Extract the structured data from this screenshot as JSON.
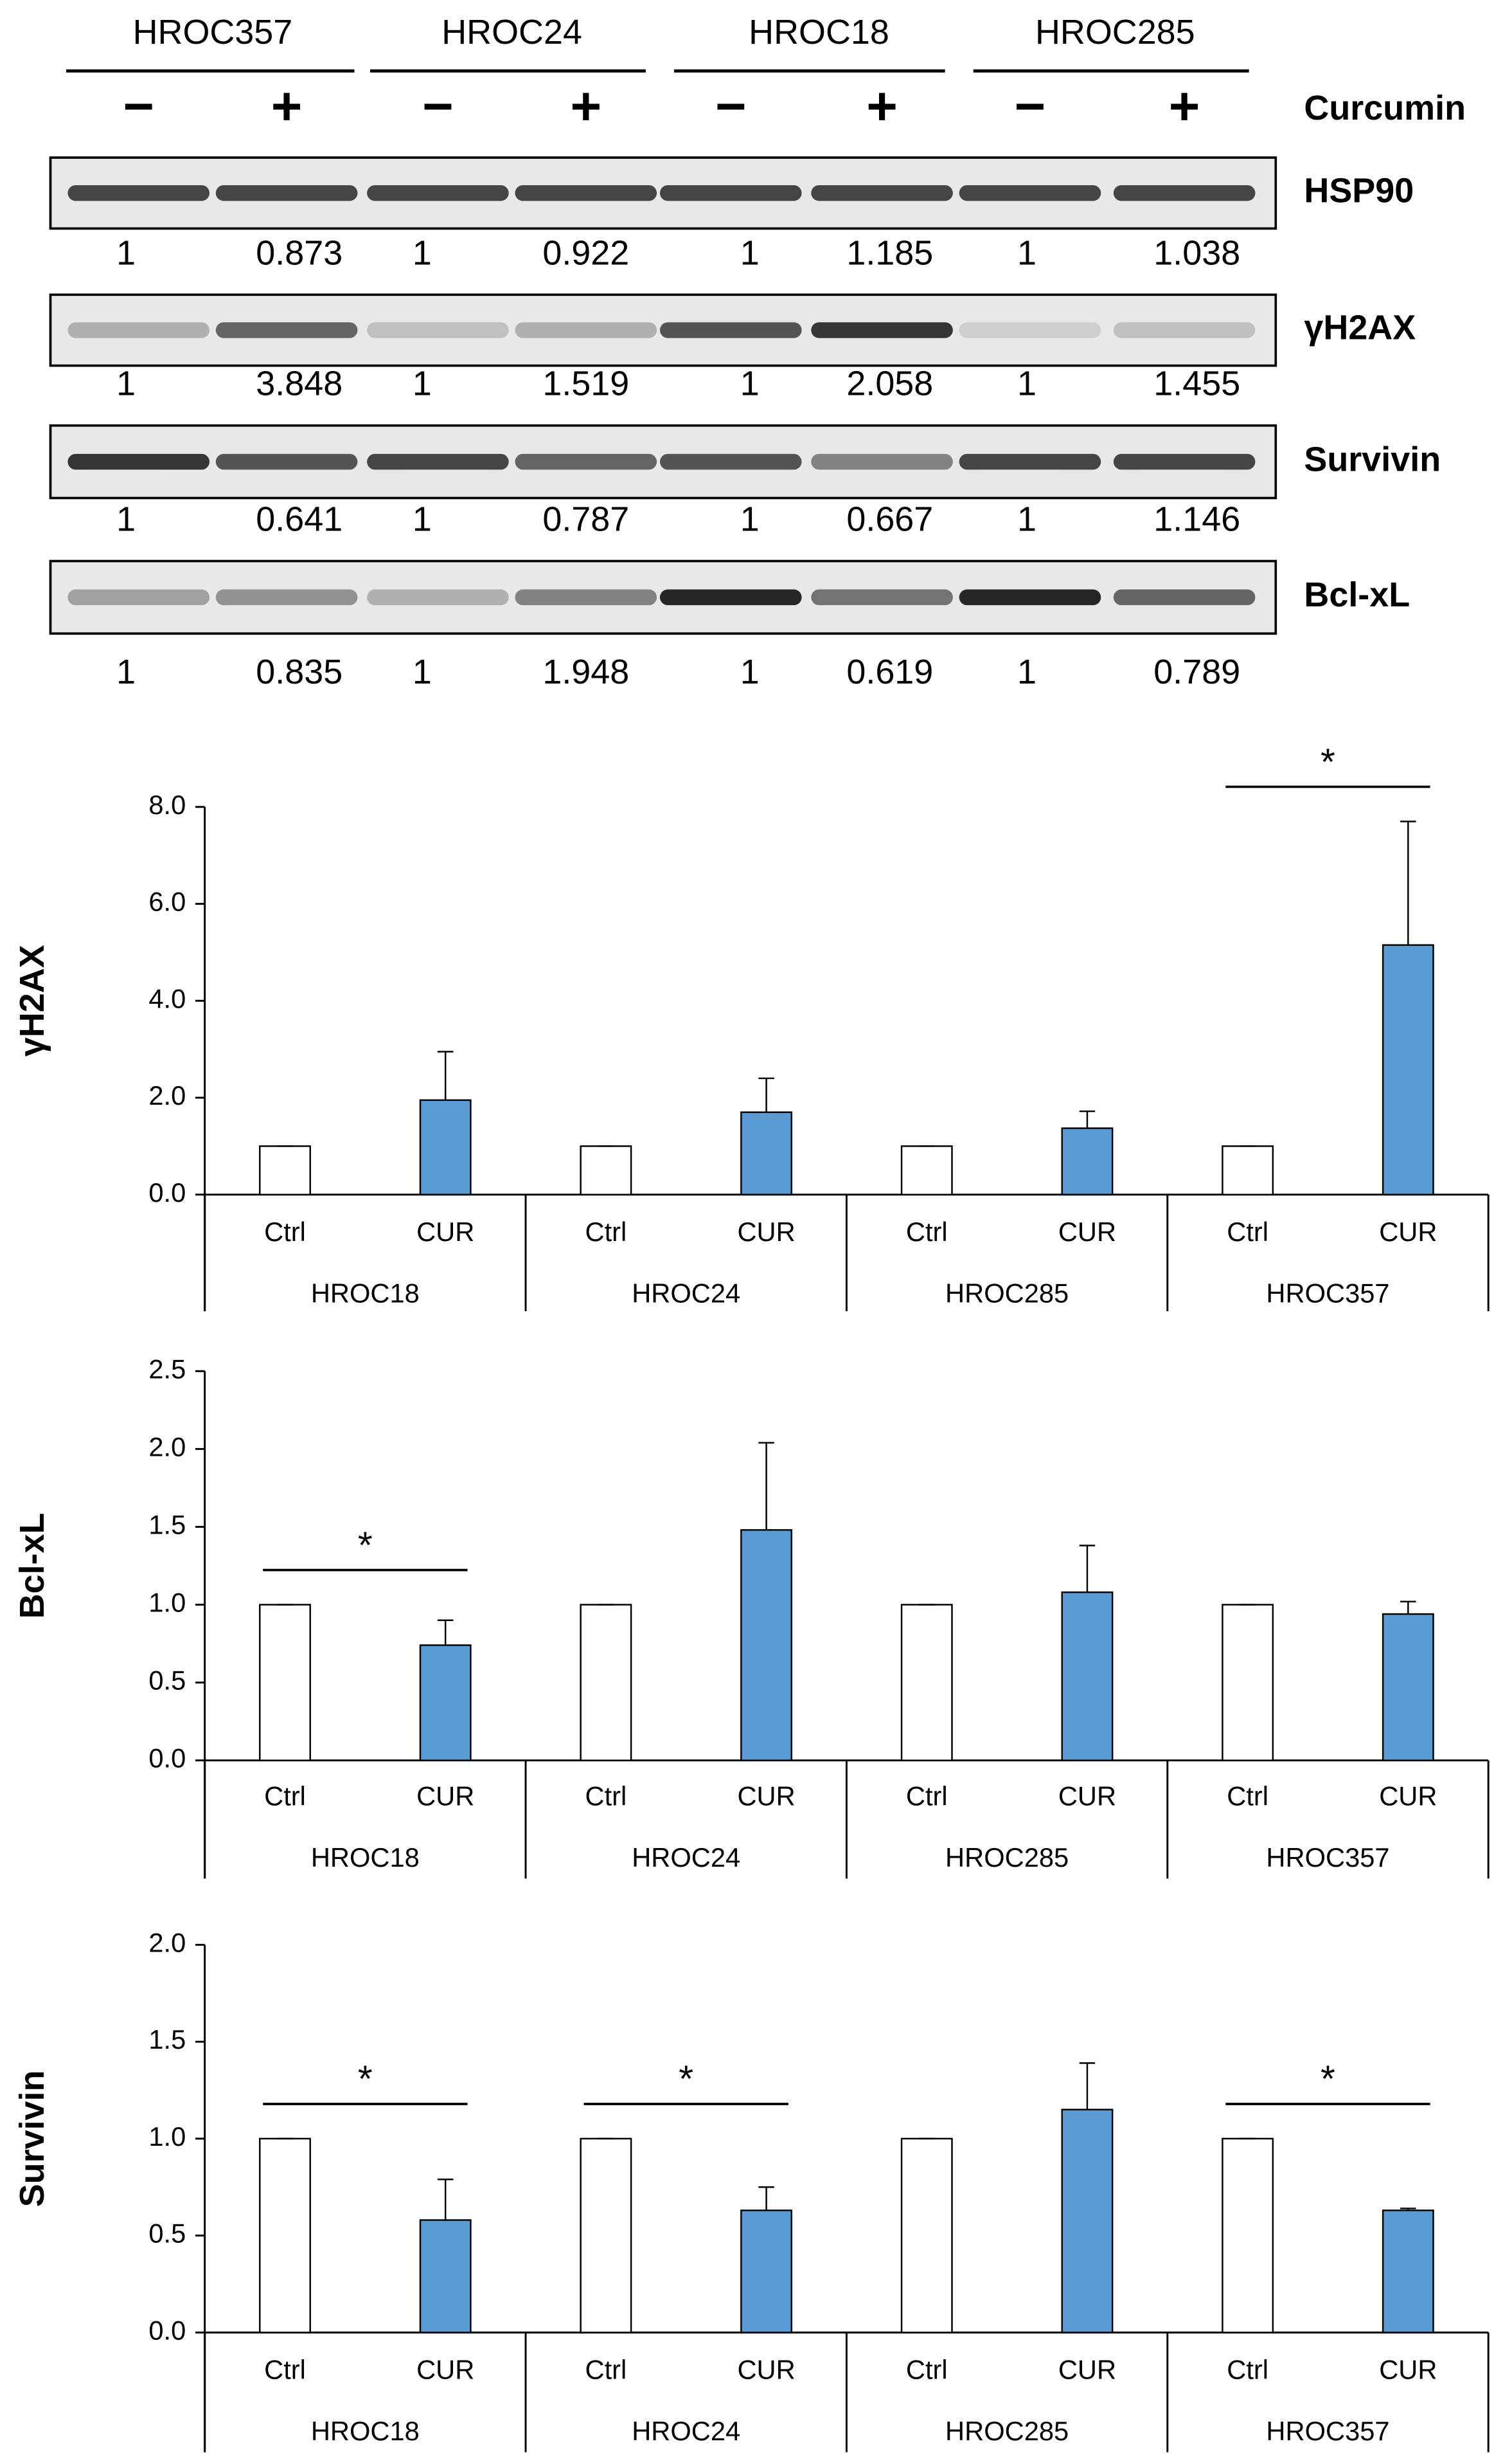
{
  "blot": {
    "cell_lines": [
      "HROC357",
      "HROC24",
      "HROC18",
      "HROC285"
    ],
    "treatment_signs": [
      "−",
      "+",
      "−",
      "+",
      "−",
      "+",
      "−",
      "+"
    ],
    "treatment_label": "Curcumin",
    "rows": [
      {
        "name": "HSP90",
        "values": [
          1,
          0.873,
          1,
          0.922,
          1,
          1.185,
          1,
          1.038
        ]
      },
      {
        "name": "γH2AX",
        "values": [
          1,
          3.848,
          1,
          1.519,
          1,
          2.058,
          1,
          1.455
        ]
      },
      {
        "name": "Survivin",
        "values": [
          1,
          0.641,
          1,
          0.787,
          1,
          0.667,
          1,
          1.146
        ]
      },
      {
        "name": "Bcl-xL",
        "values": [
          1,
          0.835,
          1,
          1.948,
          1,
          0.619,
          1,
          0.789
        ]
      }
    ]
  },
  "chart_data": [
    {
      "type": "bar",
      "ylabel": "γH2AX",
      "categories": [
        "Ctrl",
        "CUR",
        "Ctrl",
        "CUR",
        "Ctrl",
        "CUR",
        "Ctrl",
        "CUR"
      ],
      "groups": [
        "HROC18",
        "HROC24",
        "HROC285",
        "HROC357"
      ],
      "values": [
        1,
        1.95,
        1,
        1.7,
        1,
        1.37,
        1,
        5.15
      ],
      "errors": [
        0,
        1.0,
        0,
        0.7,
        0,
        0.35,
        0,
        2.55
      ],
      "colors": [
        "#ffffff",
        "#5b9bd5",
        "#ffffff",
        "#5b9bd5",
        "#ffffff",
        "#5b9bd5",
        "#ffffff",
        "#5b9bd5"
      ],
      "ylim": [
        0,
        8
      ],
      "yticks": [
        {
          "value": 0,
          "label": "0.0"
        },
        {
          "value": 2,
          "label": "2.0"
        },
        {
          "value": 4,
          "label": "4.0"
        },
        {
          "value": 6,
          "label": "6.0"
        },
        {
          "value": 8,
          "label": "8.0"
        }
      ],
      "annotations": [
        {
          "text": "*",
          "group": "HROC357"
        }
      ]
    },
    {
      "type": "bar",
      "ylabel": "Bcl-xL",
      "categories": [
        "Ctrl",
        "CUR",
        "Ctrl",
        "CUR",
        "Ctrl",
        "CUR",
        "Ctrl",
        "CUR"
      ],
      "groups": [
        "HROC18",
        "HROC24",
        "HROC285",
        "HROC357"
      ],
      "values": [
        1,
        0.74,
        1,
        1.48,
        1,
        1.08,
        1,
        0.94
      ],
      "errors": [
        0,
        0.16,
        0,
        0.56,
        0,
        0.3,
        0,
        0.08
      ],
      "colors": [
        "#ffffff",
        "#5b9bd5",
        "#ffffff",
        "#5b9bd5",
        "#ffffff",
        "#5b9bd5",
        "#ffffff",
        "#5b9bd5"
      ],
      "ylim": [
        0,
        2.5
      ],
      "yticks": [
        {
          "value": 0,
          "label": "0.0"
        },
        0.5,
        {
          "value": 1,
          "label": "1.0"
        },
        1.5,
        {
          "value": 2,
          "label": "2.0"
        },
        2.5
      ],
      "annotations": [
        {
          "text": "*",
          "group": "HROC18"
        }
      ]
    },
    {
      "type": "bar",
      "ylabel": "Survivin",
      "categories": [
        "Ctrl",
        "CUR",
        "Ctrl",
        "CUR",
        "Ctrl",
        "CUR",
        "Ctrl",
        "CUR"
      ],
      "groups": [
        "HROC18",
        "HROC24",
        "HROC285",
        "HROC357"
      ],
      "values": [
        1,
        0.58,
        1,
        0.63,
        1,
        1.15,
        1,
        0.63
      ],
      "errors": [
        0,
        0.21,
        0,
        0.12,
        0,
        0.24,
        0,
        0.01
      ],
      "colors": [
        "#ffffff",
        "#5b9bd5",
        "#ffffff",
        "#5b9bd5",
        "#ffffff",
        "#5b9bd5",
        "#ffffff",
        "#5b9bd5"
      ],
      "ylim": [
        0,
        2
      ],
      "yticks": [
        {
          "value": 0,
          "label": "0.0"
        },
        0.5,
        {
          "value": 1,
          "label": "1.0"
        },
        1.5,
        {
          "value": 2,
          "label": "2.0"
        }
      ],
      "annotations": [
        {
          "text": "*",
          "group": "HROC18"
        },
        {
          "text": "*",
          "group": "HROC24"
        },
        {
          "text": "*",
          "group": "HROC357"
        }
      ]
    }
  ]
}
